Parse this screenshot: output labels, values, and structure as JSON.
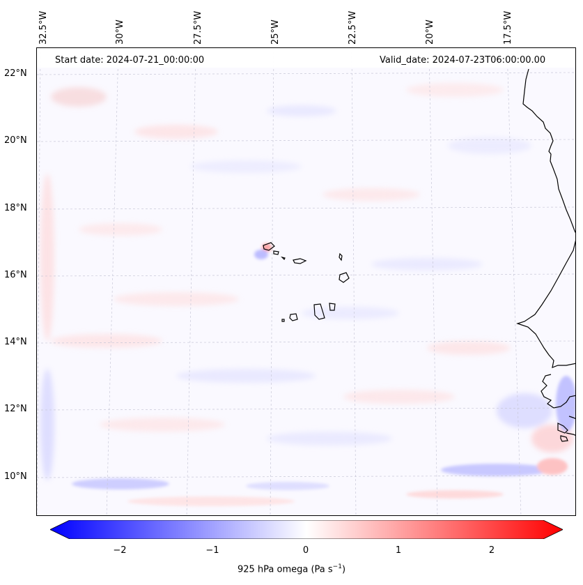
{
  "header": {
    "start_date": "Start date: 2024-07-21_00:00:00",
    "valid_date": "Valid_date: 2024-07-23T06:00:00.00"
  },
  "lon_labels": [
    "32.5°W",
    "30°W",
    "27.5°W",
    "25°W",
    "22.5°W",
    "20°W",
    "17.5°W"
  ],
  "lat_labels": [
    "22°N",
    "20°N",
    "18°N",
    "16°N",
    "14°N",
    "12°N",
    "10°N"
  ],
  "colorbar": {
    "ticks": [
      "−2",
      "−1",
      "0",
      "1",
      "2"
    ],
    "label_main": "925 hPa omega (Pa s",
    "label_sup": "−1",
    "label_end": ")",
    "min": -2.6,
    "max": 2.6,
    "colors": {
      "negative": "#0000ff",
      "zero": "#ffffff",
      "positive": "#ff0000"
    }
  },
  "map_colors": {
    "background": "#faf9ff",
    "coast": "#000000",
    "grid": "#c8c8d8"
  }
}
